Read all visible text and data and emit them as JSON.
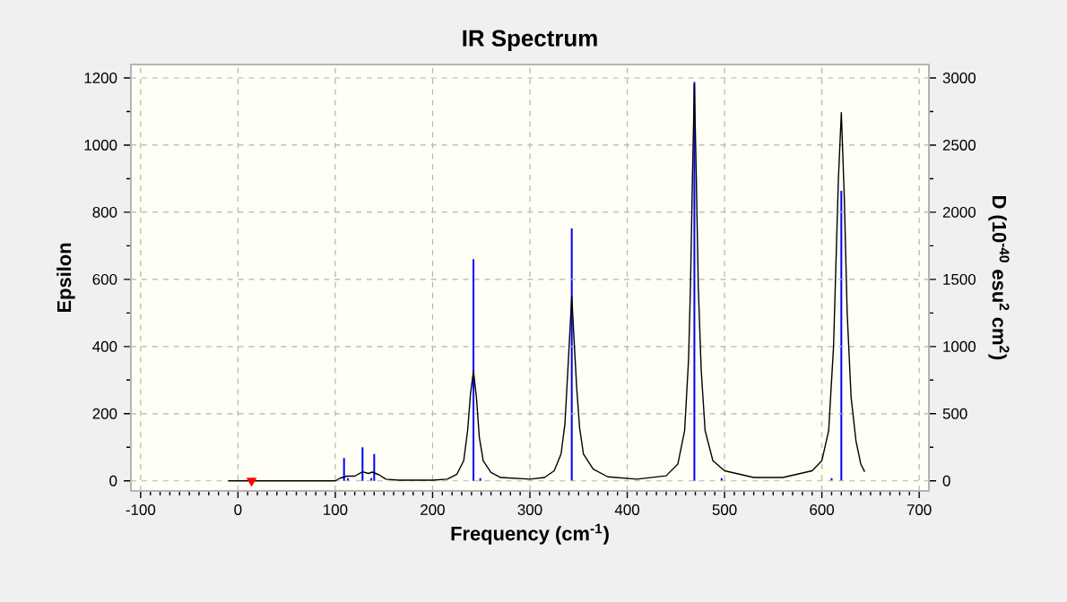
{
  "chart_data": {
    "type": "line",
    "title": "IR Spectrum",
    "xlabel": "Frequency (cm$^{-1}$)",
    "ylabel": "Epsilon",
    "y2label": "D (10$^{-40}$ esu$^{2}$ cm$^{2}$)",
    "xlim": [
      -110,
      710
    ],
    "xticks": [
      -100,
      0,
      100,
      200,
      300,
      400,
      500,
      600,
      700
    ],
    "ylim": [
      -30,
      1240
    ],
    "yticks": [
      0,
      200,
      400,
      600,
      800,
      1000,
      1200
    ],
    "y2lim": [
      -75,
      3100
    ],
    "y2ticks": [
      0,
      500,
      1000,
      1500,
      2000,
      2500,
      3000
    ],
    "grid": true,
    "series": [
      {
        "color": "#000000",
        "marker": "none",
        "line_style": "solid",
        "x": [
          -10,
          100,
          105,
          112,
          120,
          128,
          134,
          138,
          145,
          152,
          165,
          200,
          215,
          225,
          232,
          236,
          239,
          242,
          245,
          248,
          252,
          260,
          270,
          300,
          315,
          325,
          332,
          336,
          339,
          341,
          343,
          345,
          348,
          351,
          355,
          365,
          380,
          410,
          440,
          452,
          459,
          463,
          465,
          467,
          469,
          471,
          473,
          476,
          480,
          488,
          500,
          530,
          560,
          590,
          600,
          607,
          612,
          615,
          617,
          620,
          623,
          626,
          630,
          635,
          640,
          644
        ],
        "values": [
          0,
          0,
          8,
          14,
          14,
          27,
          22,
          26,
          18,
          5,
          2,
          2,
          5,
          20,
          60,
          150,
          260,
          327,
          250,
          130,
          60,
          25,
          10,
          5,
          10,
          30,
          80,
          170,
          330,
          440,
          550,
          440,
          280,
          160,
          80,
          35,
          12,
          5,
          15,
          50,
          150,
          360,
          580,
          900,
          1180,
          900,
          580,
          330,
          150,
          60,
          30,
          10,
          10,
          30,
          60,
          150,
          400,
          700,
          900,
          1097,
          850,
          500,
          250,
          120,
          50,
          27
        ]
      },
      {
        "type": "bar",
        "axis": "y2",
        "color": "#0000ff",
        "x": [
          109,
          113,
          128,
          137,
          140,
          164,
          197,
          242,
          249,
          343,
          469,
          497,
          610,
          620
        ],
        "values": [
          170,
          20,
          250,
          20,
          200,
          null,
          null,
          1650,
          20,
          1880,
          2970,
          20,
          20,
          2160
        ]
      },
      {
        "type": "scatter",
        "color": "#ff0000",
        "marker": "triangle",
        "x": [
          14
        ],
        "values": [
          0
        ]
      }
    ]
  }
}
